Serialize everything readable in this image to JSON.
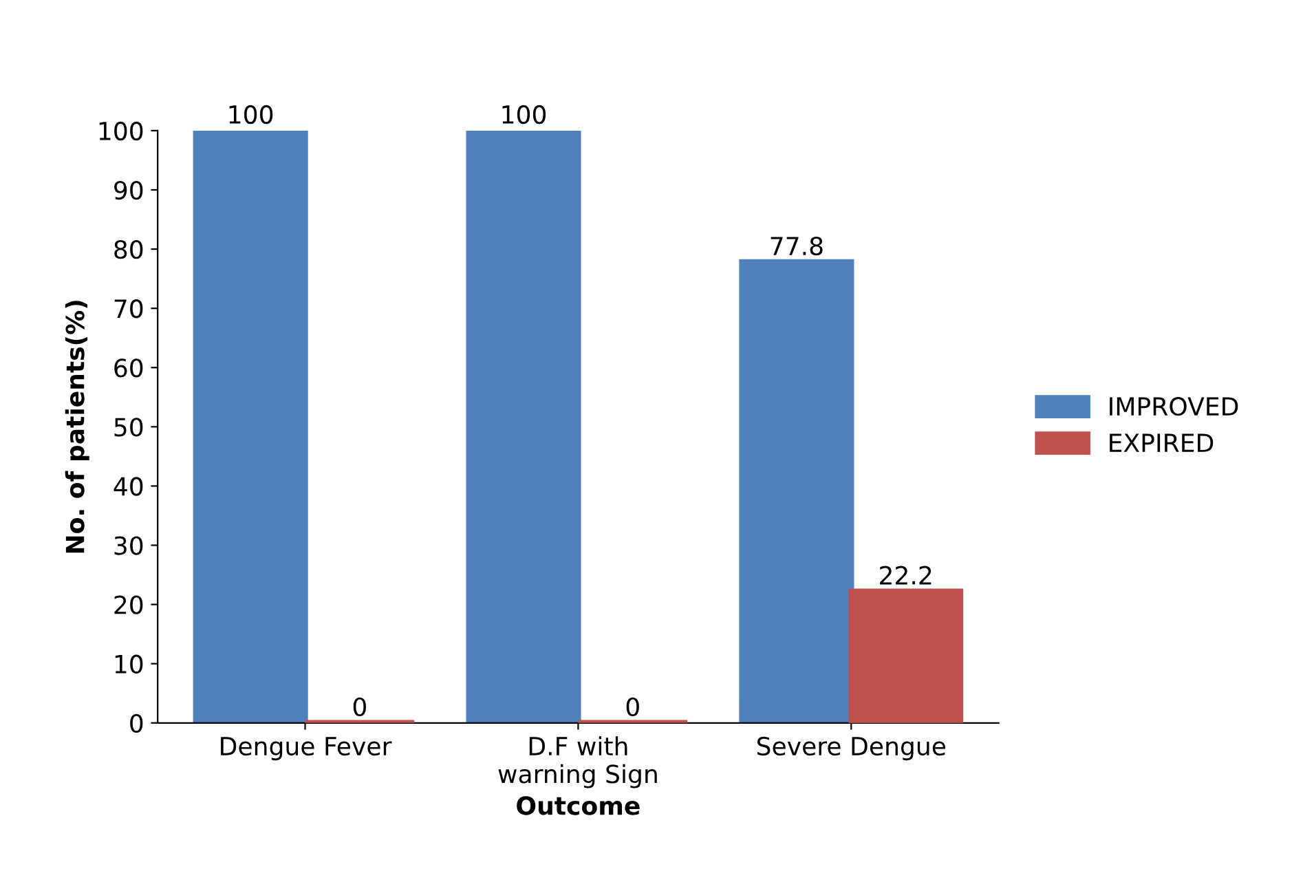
{
  "chart_data": {
    "type": "bar",
    "xlabel": "Outcome",
    "ylabel": "No. of patients(%)",
    "categories": [
      "Dengue Fever",
      "D.F with\nwarning Sign",
      "Severe Dengue"
    ],
    "series": [
      {
        "name": "IMPROVED",
        "color": "#4f81bd",
        "values": [
          100,
          100,
          77.8
        ]
      },
      {
        "name": "EXPIRED",
        "color": "#c0504d",
        "values": [
          0,
          0,
          22.2
        ]
      }
    ],
    "ylim": [
      0,
      100
    ],
    "yticks": [
      0,
      10,
      20,
      30,
      40,
      50,
      60,
      70,
      80,
      90,
      100
    ],
    "data_labels": true,
    "grid": false,
    "legend": "right"
  }
}
